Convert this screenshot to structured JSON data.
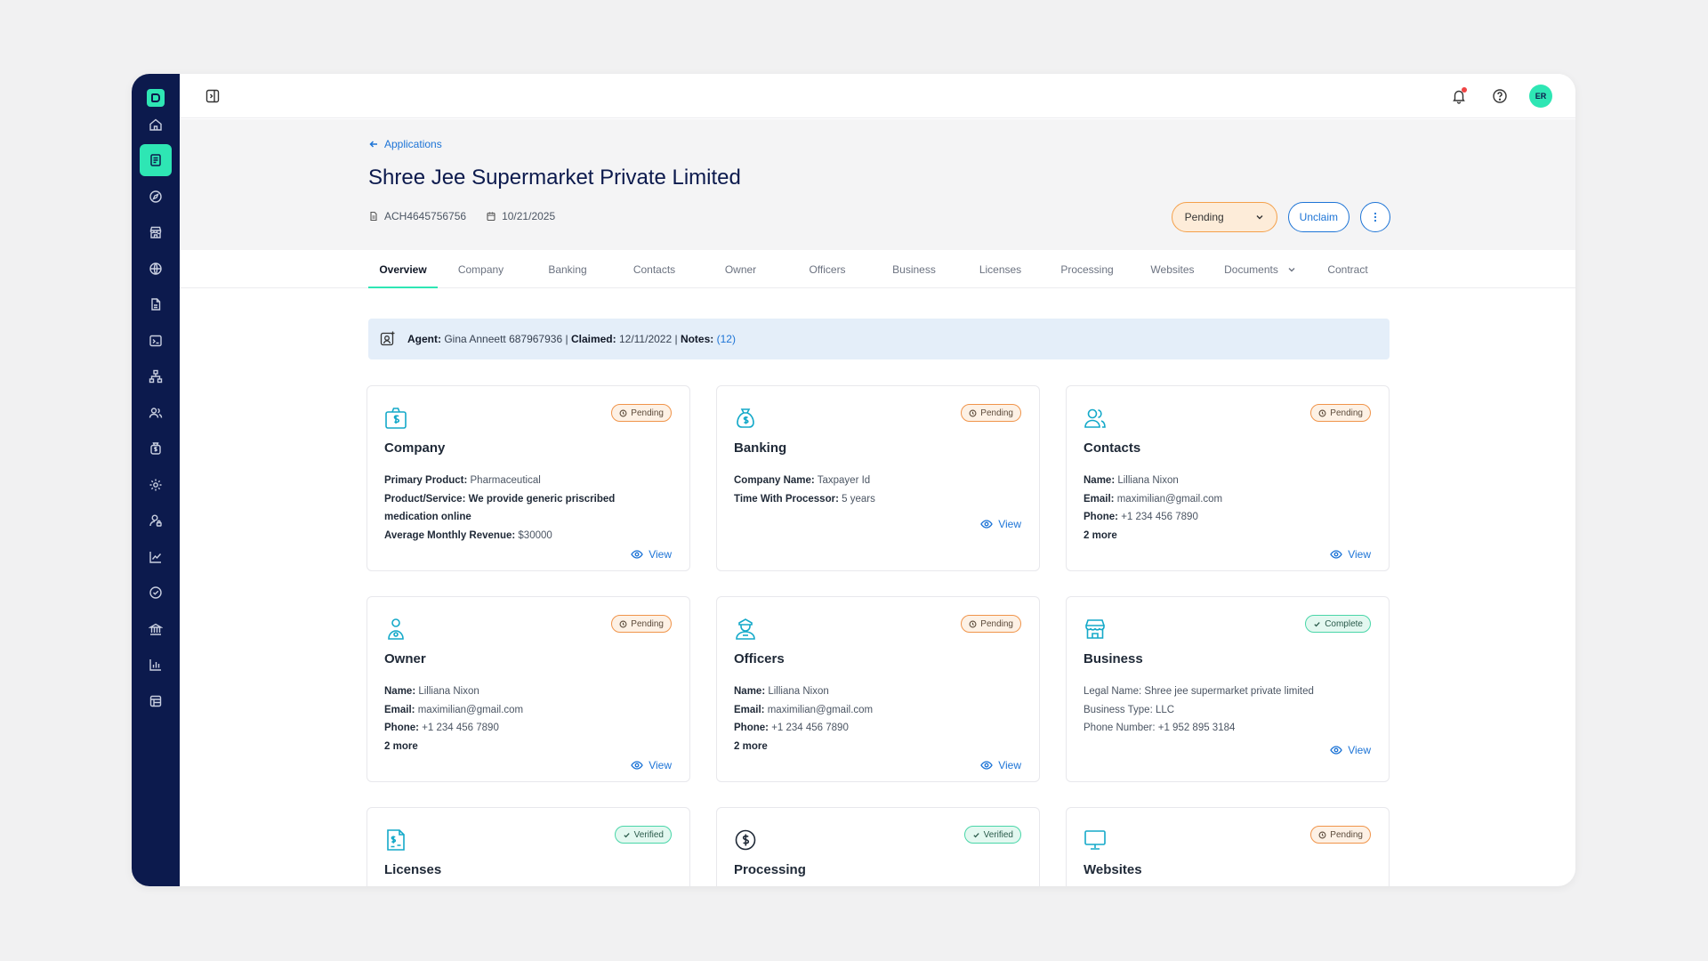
{
  "colors": {
    "sidebar": "#0c1a4d",
    "accent": "#2ee6b4",
    "link": "#1d74d6",
    "pending": "#f0944a",
    "complete": "#49d6a8"
  },
  "sidebar": {
    "items": [
      {
        "icon": "home-icon"
      },
      {
        "icon": "applications-icon",
        "active": true
      },
      {
        "icon": "compass-icon"
      },
      {
        "icon": "store-icon"
      },
      {
        "icon": "globe-icon"
      },
      {
        "icon": "document-icon"
      },
      {
        "icon": "terminal-icon"
      },
      {
        "icon": "hierarchy-icon"
      },
      {
        "icon": "users-icon"
      },
      {
        "icon": "money-bag-icon"
      },
      {
        "icon": "settings-icon"
      },
      {
        "icon": "user-lock-icon"
      },
      {
        "icon": "trend-chart-icon"
      },
      {
        "icon": "check-circle-icon"
      },
      {
        "icon": "bank-icon"
      },
      {
        "icon": "bar-chart-icon"
      },
      {
        "icon": "table-icon"
      }
    ]
  },
  "topbar": {
    "avatar_initials": "ER"
  },
  "header": {
    "back_label": "Applications",
    "title": "Shree Jee Supermarket Private Limited",
    "application_id": "ACH4645756756",
    "date": "10/21/2025",
    "status_value": "Pending",
    "unclaim_label": "Unclaim"
  },
  "tabs": [
    {
      "label": "Overview",
      "active": true
    },
    {
      "label": "Company"
    },
    {
      "label": "Banking"
    },
    {
      "label": "Contacts"
    },
    {
      "label": "Owner"
    },
    {
      "label": "Officers"
    },
    {
      "label": "Business"
    },
    {
      "label": "Licenses"
    },
    {
      "label": "Processing"
    },
    {
      "label": "Websites"
    },
    {
      "label": "Documents",
      "dropdown": true
    },
    {
      "label": "Contract"
    }
  ],
  "agent_bar": {
    "agent_label": "Agent:",
    "agent_value": "Gina Anneett 687967936",
    "sep1": " | ",
    "claimed_label": "Claimed:",
    "claimed_value": "12/11/2022",
    "sep2": " | ",
    "notes_label": "Notes:",
    "notes_value": "(12)"
  },
  "cards": {
    "company": {
      "title": "Company",
      "status": "Pending",
      "primary_product_label": "Primary Product:",
      "primary_product": "Pharmaceutical",
      "product_service_label": "Product/Service:",
      "product_service": "We provide generic priscribed medication online",
      "avg_revenue_label": "Average Monthly Revenue:",
      "avg_revenue": "$30000",
      "view_label": "View"
    },
    "banking": {
      "title": "Banking",
      "status": "Pending",
      "company_name_label": "Company Name:",
      "company_name": "Taxpayer Id",
      "time_label": "Time With Processor:",
      "time": "5 years",
      "view_label": "View"
    },
    "contacts": {
      "title": "Contacts",
      "status": "Pending",
      "name_label": "Name:",
      "name": "Lilliana Nixon",
      "email_label": "Email:",
      "email": "maximilian@gmail.com",
      "phone_label": "Phone:",
      "phone": "+1 234 456 7890",
      "more": "2 more",
      "view_label": "View"
    },
    "owner": {
      "title": "Owner",
      "status": "Pending",
      "name_label": "Name:",
      "name": "Lilliana Nixon",
      "email_label": "Email:",
      "email": "maximilian@gmail.com",
      "phone_label": "Phone:",
      "phone": "+1 234 456 7890",
      "more": "2 more",
      "view_label": "View"
    },
    "officers": {
      "title": "Officers",
      "status": "Pending",
      "name_label": "Name:",
      "name": "Lilliana Nixon",
      "email_label": "Email:",
      "email": "maximilian@gmail.com",
      "phone_label": "Phone:",
      "phone": "+1 234 456 7890",
      "more": "2 more",
      "view_label": "View"
    },
    "business": {
      "title": "Business",
      "status": "Complete",
      "legal_name": "Legal Name: Shree jee supermarket private limited",
      "business_type": "Business Type: LLC",
      "phone_number": "Phone Number: +1 952 895 3184",
      "view_label": "View"
    },
    "licenses": {
      "title": "Licenses",
      "status": "Verified"
    },
    "processing": {
      "title": "Processing",
      "status": "Verified"
    },
    "websites": {
      "title": "Websites",
      "status": "Pending"
    }
  }
}
